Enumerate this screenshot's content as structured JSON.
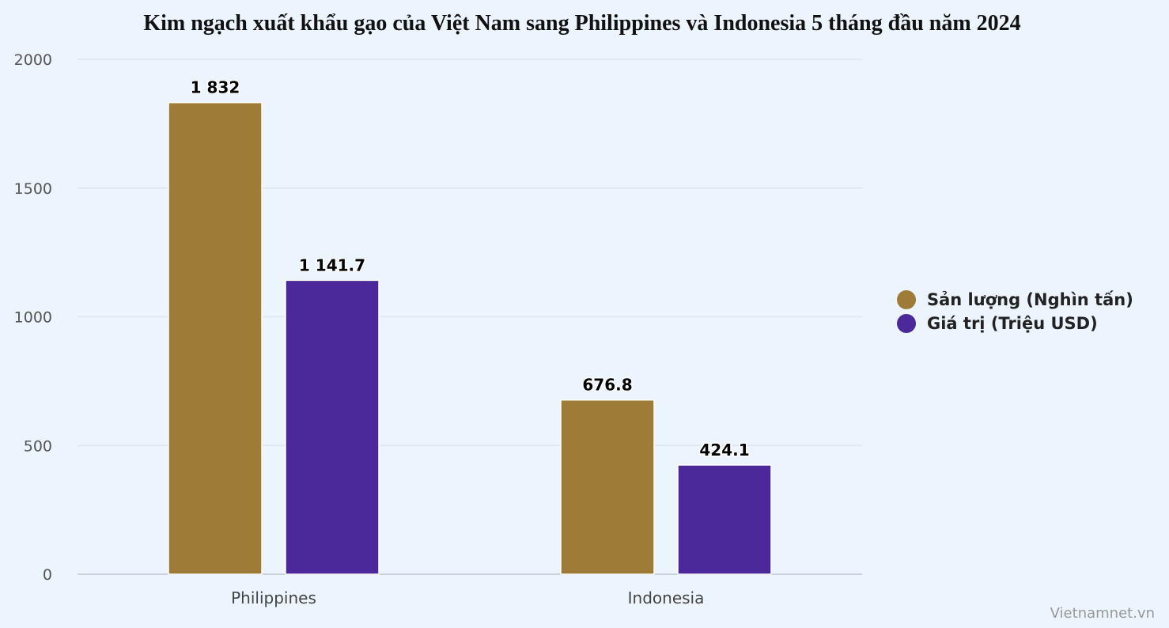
{
  "chart_data": {
    "type": "bar",
    "title": "Kim ngạch xuất khẩu gạo của Việt Nam sang Philippines và Indonesia 5 tháng đầu năm 2024",
    "categories": [
      "Philippines",
      "Indonesia"
    ],
    "series": [
      {
        "name": "Sản lượng (Nghìn tấn)",
        "values": [
          1832,
          676.8
        ],
        "labels": [
          "1 832",
          "676.8"
        ],
        "color": "#9e7b37"
      },
      {
        "name": "Giá trị (Triệu USD)",
        "values": [
          1141.7,
          424.1
        ],
        "labels": [
          "1 141.7",
          "424.1"
        ],
        "color": "#4b299b"
      }
    ],
    "ylim": [
      0,
      2000
    ],
    "yticks": [
      0,
      500,
      1000,
      1500,
      2000
    ],
    "xlabel": "",
    "ylabel": "",
    "grid": true,
    "legend_position": "right"
  },
  "credit": "Vietnamnet.vn"
}
